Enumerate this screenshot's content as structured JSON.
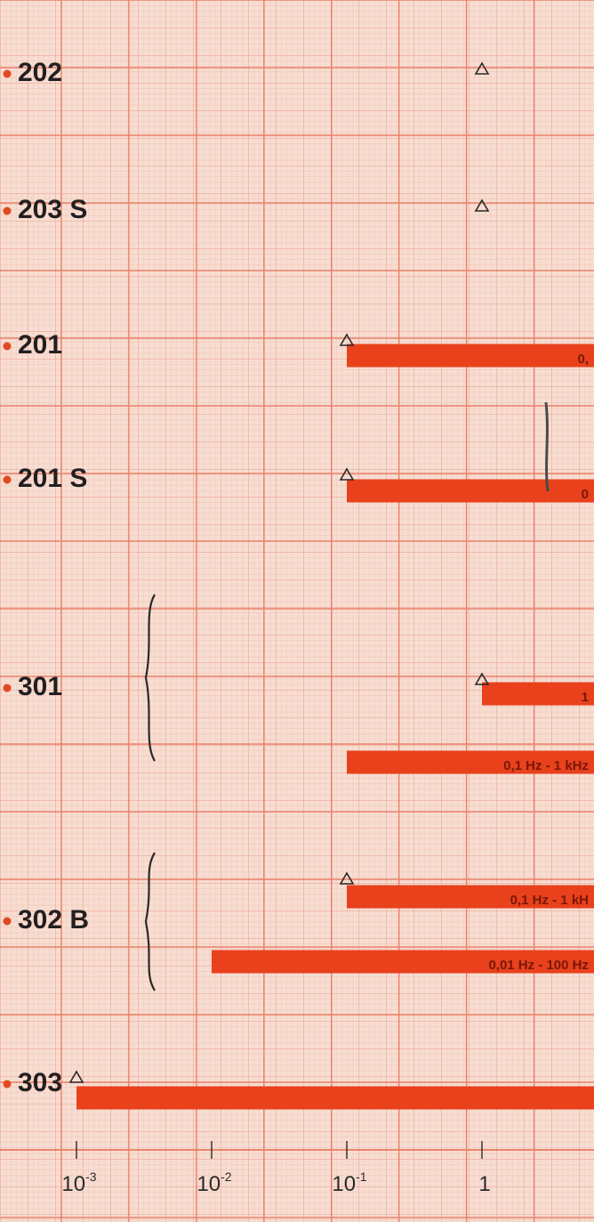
{
  "chart_data": {
    "type": "bar",
    "orientation": "horizontal",
    "x_scale": "log",
    "x_unit": "Hz",
    "x_ticks": [
      {
        "value": 0.001,
        "base": "10",
        "exp": "-3"
      },
      {
        "value": 0.01,
        "base": "10",
        "exp": "-2"
      },
      {
        "value": 0.1,
        "base": "10",
        "exp": "-1"
      },
      {
        "value": 1,
        "base": "1",
        "exp": ""
      }
    ],
    "xlim_visible": [
      0.001,
      1
    ],
    "grid": true,
    "colors": {
      "bar": "#e8411c",
      "marker": "#2a2a2a",
      "dot": "#e04a20",
      "grid_major": "#e9806a",
      "grid_minor": "#f3b4a1",
      "paper": "#f7ddd2"
    },
    "groups": [
      {
        "label": "202",
        "rows": [
          {
            "start_hz": 1,
            "bar": false,
            "text": ""
          }
        ]
      },
      {
        "label": "203 S",
        "rows": [
          {
            "start_hz": 1,
            "bar": false,
            "text": ""
          }
        ]
      },
      {
        "label": "201",
        "rows": [
          {
            "start_hz": 0.1,
            "bar": true,
            "text": "0,"
          }
        ]
      },
      {
        "label": "201 S",
        "rows": [
          {
            "start_hz": 0.1,
            "bar": true,
            "text": "0"
          }
        ]
      },
      {
        "label": "301",
        "rows": [
          {
            "start_hz": 1,
            "bar": true,
            "text": "1"
          },
          {
            "start_hz": 0.1,
            "bar": true,
            "text": "0,1 Hz - 1 kHz"
          }
        ]
      },
      {
        "label": "302 B",
        "rows": [
          {
            "start_hz": 0.1,
            "bar": true,
            "text": "0,1 Hz - 1 kH"
          },
          {
            "start_hz": 0.01,
            "bar": true,
            "text": "0,01 Hz - 100 Hz"
          }
        ]
      },
      {
        "label": "303",
        "rows": [
          {
            "start_hz": 0.001,
            "bar": true,
            "text": ""
          }
        ]
      }
    ]
  }
}
